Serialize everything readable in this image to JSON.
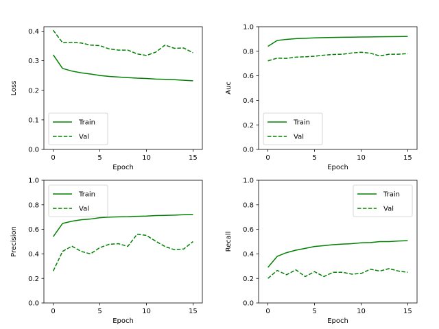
{
  "chart_data": [
    {
      "type": "line",
      "ylabel": "Loss",
      "xlabel": "Epoch",
      "xlim": [
        -1,
        16
      ],
      "ylim": [
        0,
        0.415
      ],
      "xticks": [
        0,
        5,
        10,
        15
      ],
      "yticks": [
        0.0,
        0.1,
        0.2,
        0.3,
        0.4
      ],
      "legend": "lower-left",
      "x": [
        0,
        1,
        2,
        3,
        4,
        5,
        6,
        7,
        8,
        9,
        10,
        11,
        12,
        13,
        14,
        15
      ],
      "series": [
        {
          "name": "Train",
          "style": "solid",
          "values": [
            0.32,
            0.274,
            0.265,
            0.259,
            0.255,
            0.25,
            0.247,
            0.245,
            0.243,
            0.241,
            0.24,
            0.238,
            0.237,
            0.236,
            0.234,
            0.232
          ]
        },
        {
          "name": "Val",
          "style": "dashed",
          "values": [
            0.403,
            0.361,
            0.362,
            0.36,
            0.353,
            0.351,
            0.34,
            0.336,
            0.336,
            0.323,
            0.318,
            0.329,
            0.353,
            0.342,
            0.343,
            0.327
          ]
        }
      ]
    },
    {
      "type": "line",
      "ylabel": "Auc",
      "xlabel": "Epoch",
      "xlim": [
        -1,
        16
      ],
      "ylim": [
        0,
        1.0
      ],
      "xticks": [
        0,
        5,
        10,
        15
      ],
      "yticks": [
        0.0,
        0.2,
        0.4,
        0.6,
        0.8,
        1.0
      ],
      "legend": "lower-left",
      "x": [
        0,
        1,
        2,
        3,
        4,
        5,
        6,
        7,
        8,
        9,
        10,
        11,
        12,
        13,
        14,
        15
      ],
      "series": [
        {
          "name": "Train",
          "style": "solid",
          "values": [
            0.84,
            0.888,
            0.897,
            0.903,
            0.906,
            0.909,
            0.911,
            0.913,
            0.914,
            0.915,
            0.916,
            0.917,
            0.918,
            0.919,
            0.92,
            0.921
          ]
        },
        {
          "name": "Val",
          "style": "dashed",
          "values": [
            0.722,
            0.744,
            0.742,
            0.752,
            0.755,
            0.76,
            0.768,
            0.774,
            0.776,
            0.786,
            0.792,
            0.784,
            0.762,
            0.776,
            0.776,
            0.781
          ]
        }
      ]
    },
    {
      "type": "line",
      "ylabel": "Precision",
      "xlabel": "Epoch",
      "xlim": [
        -1,
        16
      ],
      "ylim": [
        0,
        1.0
      ],
      "xticks": [
        0,
        5,
        10,
        15
      ],
      "yticks": [
        0.0,
        0.2,
        0.4,
        0.6,
        0.8,
        1.0
      ],
      "legend": "upper-left",
      "x": [
        0,
        1,
        2,
        3,
        4,
        5,
        6,
        7,
        8,
        9,
        10,
        11,
        12,
        13,
        14,
        15
      ],
      "series": [
        {
          "name": "Train",
          "style": "solid",
          "values": [
            0.54,
            0.648,
            0.666,
            0.678,
            0.684,
            0.695,
            0.7,
            0.702,
            0.703,
            0.706,
            0.708,
            0.712,
            0.714,
            0.716,
            0.719,
            0.722
          ]
        },
        {
          "name": "Val",
          "style": "dashed",
          "values": [
            0.26,
            0.42,
            0.463,
            0.42,
            0.4,
            0.451,
            0.478,
            0.483,
            0.461,
            0.56,
            0.551,
            0.503,
            0.46,
            0.434,
            0.44,
            0.5
          ]
        }
      ]
    },
    {
      "type": "line",
      "ylabel": "Recall",
      "xlabel": "Epoch",
      "xlim": [
        -1,
        16
      ],
      "ylim": [
        0,
        1.0
      ],
      "xticks": [
        0,
        5,
        10,
        15
      ],
      "yticks": [
        0.0,
        0.2,
        0.4,
        0.6,
        0.8,
        1.0
      ],
      "legend": "upper-right",
      "x": [
        0,
        1,
        2,
        3,
        4,
        5,
        6,
        7,
        8,
        9,
        10,
        11,
        12,
        13,
        14,
        15
      ],
      "series": [
        {
          "name": "Train",
          "style": "solid",
          "values": [
            0.29,
            0.38,
            0.41,
            0.43,
            0.445,
            0.46,
            0.467,
            0.475,
            0.48,
            0.483,
            0.49,
            0.492,
            0.5,
            0.5,
            0.505,
            0.508
          ]
        },
        {
          "name": "Val",
          "style": "dashed",
          "values": [
            0.2,
            0.265,
            0.23,
            0.27,
            0.215,
            0.255,
            0.215,
            0.25,
            0.25,
            0.235,
            0.24,
            0.275,
            0.26,
            0.28,
            0.26,
            0.25
          ]
        }
      ]
    }
  ],
  "colors": {
    "series_line": "#008000",
    "axis": "#000000",
    "legend_border": "#cccccc",
    "background": "#ffffff"
  }
}
